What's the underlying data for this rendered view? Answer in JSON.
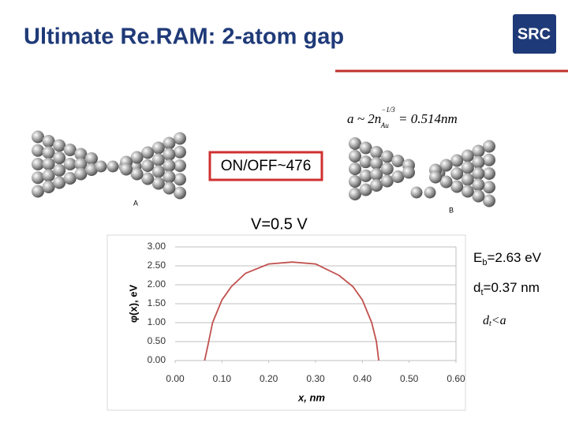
{
  "title": "Ultimate Re.RAM: 2-atom gap",
  "logo": "SRC",
  "formula": {
    "lhs": "a ~ 2n",
    "exp": "−1/3",
    "sub": "Au",
    "rhs": " = 0.514nm"
  },
  "on_off": "ON/OFF~476",
  "label_a": "A",
  "label_b": "B",
  "voltage": "V=0.5 V",
  "eb": {
    "base": "E",
    "sub": "b",
    "rest": "=2.63 eV"
  },
  "dt": {
    "base": "d",
    "sub": "t",
    "rest": "=0.37 nm"
  },
  "dt_lt_a": {
    "base": "d",
    "sub": "t",
    "rest": "<a"
  },
  "chart_data": {
    "type": "line",
    "x": [
      0.063,
      0.07,
      0.08,
      0.1,
      0.12,
      0.15,
      0.2,
      0.25,
      0.3,
      0.35,
      0.38,
      0.4,
      0.42,
      0.43,
      0.435
    ],
    "values": [
      0,
      0.4,
      1.0,
      1.6,
      1.95,
      2.3,
      2.55,
      2.6,
      2.55,
      2.25,
      1.95,
      1.6,
      1.0,
      0.5,
      0
    ],
    "color": "#c0504d",
    "xlabel": "x, nm",
    "ylabel": "φ(x), eV",
    "xlim": [
      0,
      0.6
    ],
    "ylim": [
      0,
      3
    ],
    "xticks": [
      {
        "value": 0,
        "label": "0.00"
      },
      {
        "value": 0.1,
        "label": "0.10"
      },
      {
        "value": 0.2,
        "label": "0.20"
      },
      {
        "value": 0.3,
        "label": "0.30"
      },
      {
        "value": 0.4,
        "label": "0.40"
      },
      {
        "value": 0.5,
        "label": "0.50"
      },
      {
        "value": 0.6,
        "label": "0.60"
      }
    ],
    "yticks": [
      {
        "value": 0,
        "label": "0.00"
      },
      {
        "value": 0.5,
        "label": "0.50"
      },
      {
        "value": 1,
        "label": "1.00"
      },
      {
        "value": 1.5,
        "label": "1.50"
      },
      {
        "value": 2,
        "label": "2.00"
      },
      {
        "value": 2.5,
        "label": "2.50"
      },
      {
        "value": 3,
        "label": "3.00"
      }
    ],
    "grid": true
  }
}
